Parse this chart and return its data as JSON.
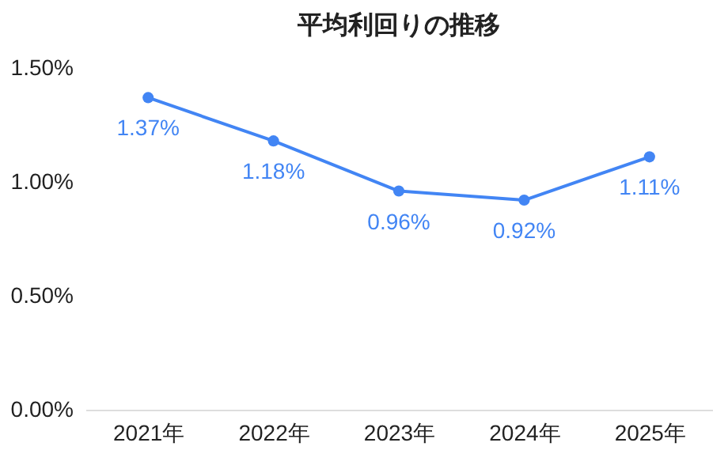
{
  "chart_data": {
    "type": "line",
    "title": "平均利回りの推移",
    "categories": [
      "2021年",
      "2022年",
      "2023年",
      "2024年",
      "2025年"
    ],
    "series": [
      {
        "color": "#4285f4",
        "values": [
          1.37,
          1.18,
          0.96,
          0.92,
          1.11
        ]
      }
    ],
    "value_labels": [
      "1.37%",
      "1.18%",
      "0.96%",
      "0.92%",
      "1.11%"
    ],
    "ylim": [
      0,
      1.5
    ],
    "yticks": [
      {
        "value": 0,
        "label": "0.00%"
      },
      {
        "value": 0.5,
        "label": "0.50%"
      },
      {
        "value": 1,
        "label": "1.00%"
      },
      {
        "value": 1.5,
        "label": "1.50%"
      }
    ],
    "marker": "circle",
    "legend": false
  }
}
